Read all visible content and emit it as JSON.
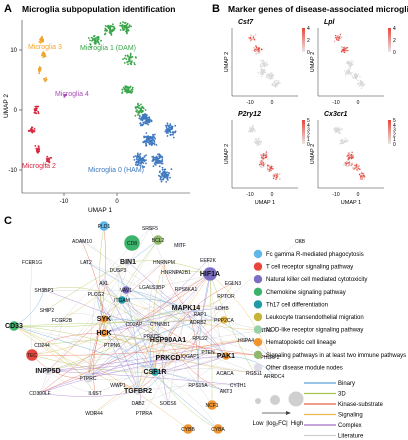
{
  "panelA": {
    "letter": "A",
    "title": "Microglia subpopulation identification",
    "xlabel": "UMAP 1",
    "ylabel": "UMAP 2",
    "xticks": [
      "-10",
      "0"
    ],
    "yticks": [
      "10",
      "0",
      "-10"
    ],
    "clusters": [
      {
        "label": "Microglia 3",
        "color": "#f1a52b"
      },
      {
        "label": "Microglia 1 (DAM)",
        "color": "#3aa54a"
      },
      {
        "label": "Microglia 4",
        "color": "#a64db4"
      },
      {
        "label": "Microglia 2",
        "color": "#d7263d"
      },
      {
        "label": "Microglia 0 (HAM)",
        "color": "#3f78c0"
      }
    ]
  },
  "panelB": {
    "letter": "B",
    "title": "Marker genes of disease-associated microglia (DAM)",
    "xlabel": "UMAP 1",
    "ylabel": "UMAP 2",
    "xticks": [
      "-10",
      "0"
    ],
    "yticks": [
      "10",
      "0",
      "-10"
    ],
    "plots": [
      {
        "gene": "Cst7",
        "scale": [
          "4",
          "2",
          "0"
        ],
        "color": "#e8453c"
      },
      {
        "gene": "Lpl",
        "scale": [
          "4",
          "2",
          "0"
        ],
        "color": "#e8453c"
      },
      {
        "gene": "P2ry12",
        "scale": [
          "5",
          "4",
          "3",
          "2",
          "1",
          "0"
        ],
        "color": "#e8453c"
      },
      {
        "gene": "Cx3cr1",
        "scale": [
          "5",
          "4",
          "3",
          "2",
          "1",
          "0"
        ],
        "color": "#e8453c"
      }
    ]
  },
  "panelC": {
    "letter": "C",
    "legend": [
      {
        "label": "Fc gamma R-mediated phagocytosis",
        "color": "#5fb7e8"
      },
      {
        "label": "T cell receptor signaling pathway",
        "color": "#e8453c"
      },
      {
        "label": "Natural killer cell mediated cytotoxicity",
        "color": "#7b6cc4"
      },
      {
        "label": "Chemokine signaling pathway",
        "color": "#3bb36b"
      },
      {
        "label": "Th17 cell differentiation",
        "color": "#1f9aa6"
      },
      {
        "label": "Leukocyte transendothelial migration",
        "color": "#c9b43a"
      },
      {
        "label": "NOD-like receptor signaling pathway",
        "color": "#9ad0a6"
      },
      {
        "label": "Hematopoietic cell lineage",
        "color": "#f0952e"
      },
      {
        "label": "Signaling pathways in at least two immune pathways",
        "color": "#8fb86a"
      },
      {
        "label": "Other disease module nodes",
        "color": "#dcdbe6"
      }
    ],
    "edges": [
      {
        "label": "Binary",
        "color": "#5aa0d8"
      },
      {
        "label": "3D",
        "color": "#a4c64a"
      },
      {
        "label": "Kinase-substrate",
        "color": "#e8604a"
      },
      {
        "label": "Signaling",
        "color": "#e8b84a"
      },
      {
        "label": "Complex",
        "color": "#a070c8"
      },
      {
        "label": "Literature",
        "color": "#cfcfcf"
      }
    ],
    "size_legend": {
      "low": "Low",
      "metric": "|log₂FC|",
      "high": "High"
    },
    "nodes": [
      {
        "id": "PLD1",
        "color": "#5fb7e8",
        "bold": false
      },
      {
        "id": "SRSF5",
        "color": "#dcdbe6",
        "bold": false
      },
      {
        "id": "CD8",
        "color": "#3bb36b",
        "bold": false
      },
      {
        "id": "BCL2",
        "color": "#8fb86a",
        "bold": false
      },
      {
        "id": "MITF",
        "color": "#dcdbe6",
        "bold": false
      },
      {
        "id": "CKB",
        "color": "#dcdbe6",
        "bold": false
      },
      {
        "id": "ADAM10",
        "color": "#dcdbe6",
        "bold": false
      },
      {
        "id": "BIN1",
        "color": "#dcdbe6",
        "bold": true
      },
      {
        "id": "HNRNPM",
        "color": "#dcdbe6",
        "bold": false
      },
      {
        "id": "HNRNPA2B1",
        "color": "#dcdbe6",
        "bold": false
      },
      {
        "id": "EEF2K",
        "color": "#dcdbe6",
        "bold": false
      },
      {
        "id": "FCER1G",
        "color": "#dcdbe6",
        "bold": false
      },
      {
        "id": "LAT2",
        "color": "#dcdbe6",
        "bold": false
      },
      {
        "id": "DUSP3",
        "color": "#dcdbe6",
        "bold": false
      },
      {
        "id": "HIF1A",
        "color": "#7b6cc4",
        "bold": true
      },
      {
        "id": "EGLN3",
        "color": "#dcdbe6",
        "bold": false
      },
      {
        "id": "AXL",
        "color": "#dcdbe6",
        "bold": false
      },
      {
        "id": "VAV1",
        "color": "#7b6cc4",
        "bold": false
      },
      {
        "id": "LGALS3BP",
        "color": "#dcdbe6",
        "bold": false
      },
      {
        "id": "RPS6KA1",
        "color": "#dcdbe6",
        "bold": false
      },
      {
        "id": "RPTOR",
        "color": "#dcdbe6",
        "bold": false
      },
      {
        "id": "SH3BP1",
        "color": "#dcdbe6",
        "bold": false
      },
      {
        "id": "PLCG2",
        "color": "#dcdbe6",
        "bold": false
      },
      {
        "id": "ITGAM",
        "color": "#1f9aa6",
        "bold": false
      },
      {
        "id": "MAPK14",
        "color": "#dcdbe6",
        "bold": true
      },
      {
        "id": "LDHB",
        "color": "#dcdbe6",
        "bold": false
      },
      {
        "id": "RAP1",
        "color": "#dcdbe6",
        "bold": false
      },
      {
        "id": "SHIP2",
        "color": "#dcdbe6",
        "bold": false
      },
      {
        "id": "FCGR2B",
        "color": "#dcdbe6",
        "bold": false
      },
      {
        "id": "SYK",
        "color": "#f0952e",
        "bold": true
      },
      {
        "id": "CD2AP",
        "color": "#dcdbe6",
        "bold": false
      },
      {
        "id": "CTNNB1",
        "color": "#dcdbe6",
        "bold": false
      },
      {
        "id": "PRKCE",
        "color": "#dcdbe6",
        "bold": false
      },
      {
        "id": "ADRB2",
        "color": "#dcdbe6",
        "bold": false
      },
      {
        "id": "PPP2CA",
        "color": "#e8b84a",
        "bold": false
      },
      {
        "id": "CD33",
        "color": "#3bb36b",
        "bold": true
      },
      {
        "id": "HCK",
        "color": "#f0952e",
        "bold": true
      },
      {
        "id": "HSP90AA1",
        "color": "#dcdbe6",
        "bold": true
      },
      {
        "id": "RPL22",
        "color": "#dcdbe6",
        "bold": false
      },
      {
        "id": "HSPA4",
        "color": "#dcdbe6",
        "bold": false
      },
      {
        "id": "SNTA1",
        "color": "#dcdbe6",
        "bold": false
      },
      {
        "id": "CD244",
        "color": "#dcdbe6",
        "bold": false
      },
      {
        "id": "PTPN6",
        "color": "#dcdbe6",
        "bold": false
      },
      {
        "id": "PTEN",
        "color": "#dcdbe6",
        "bold": false
      },
      {
        "id": "PAK1",
        "color": "#f0952e",
        "bold": true
      },
      {
        "id": "TEC",
        "color": "#e8453c",
        "bold": false
      },
      {
        "id": "PRKCD",
        "color": "#dcdbe6",
        "bold": true
      },
      {
        "id": "IQGAP1",
        "color": "#dcdbe6",
        "bold": false
      },
      {
        "id": "PHLPP2",
        "color": "#dcdbe6",
        "bold": false
      },
      {
        "id": "INPP5D",
        "color": "#dcdbe6",
        "bold": true
      },
      {
        "id": "CSF1R",
        "color": "#1f9aa6",
        "bold": true
      },
      {
        "id": "ACACA",
        "color": "#dcdbe6",
        "bold": false
      },
      {
        "id": "RGS11",
        "color": "#dcdbe6",
        "bold": false
      },
      {
        "id": "ARRDC4",
        "color": "#dcdbe6",
        "bold": false
      },
      {
        "id": "PTPRC",
        "color": "#dcdbe6",
        "bold": false
      },
      {
        "id": "RPS15A",
        "color": "#dcdbe6",
        "bold": false
      },
      {
        "id": "CYTH1",
        "color": "#dcdbe6",
        "bold": false
      },
      {
        "id": "CD300LF",
        "color": "#dcdbe6",
        "bold": false
      },
      {
        "id": "IL6ST",
        "color": "#dcdbe6",
        "bold": false
      },
      {
        "id": "TGFBR2",
        "color": "#dcdbe6",
        "bold": true
      },
      {
        "id": "AKT3",
        "color": "#dcdbe6",
        "bold": false
      },
      {
        "id": "DAB2",
        "color": "#dcdbe6",
        "bold": false
      },
      {
        "id": "SOCS6",
        "color": "#dcdbe6",
        "bold": false
      },
      {
        "id": "NCF1",
        "color": "#f0952e",
        "bold": false
      },
      {
        "id": "WDR44",
        "color": "#dcdbe6",
        "bold": false
      },
      {
        "id": "PTPRA",
        "color": "#dcdbe6",
        "bold": false
      },
      {
        "id": "CYBB",
        "color": "#f0952e",
        "bold": false
      },
      {
        "id": "CYBA",
        "color": "#f0952e",
        "bold": false
      },
      {
        "id": "WWP1",
        "color": "#dcdbe6",
        "bold": false
      }
    ]
  }
}
